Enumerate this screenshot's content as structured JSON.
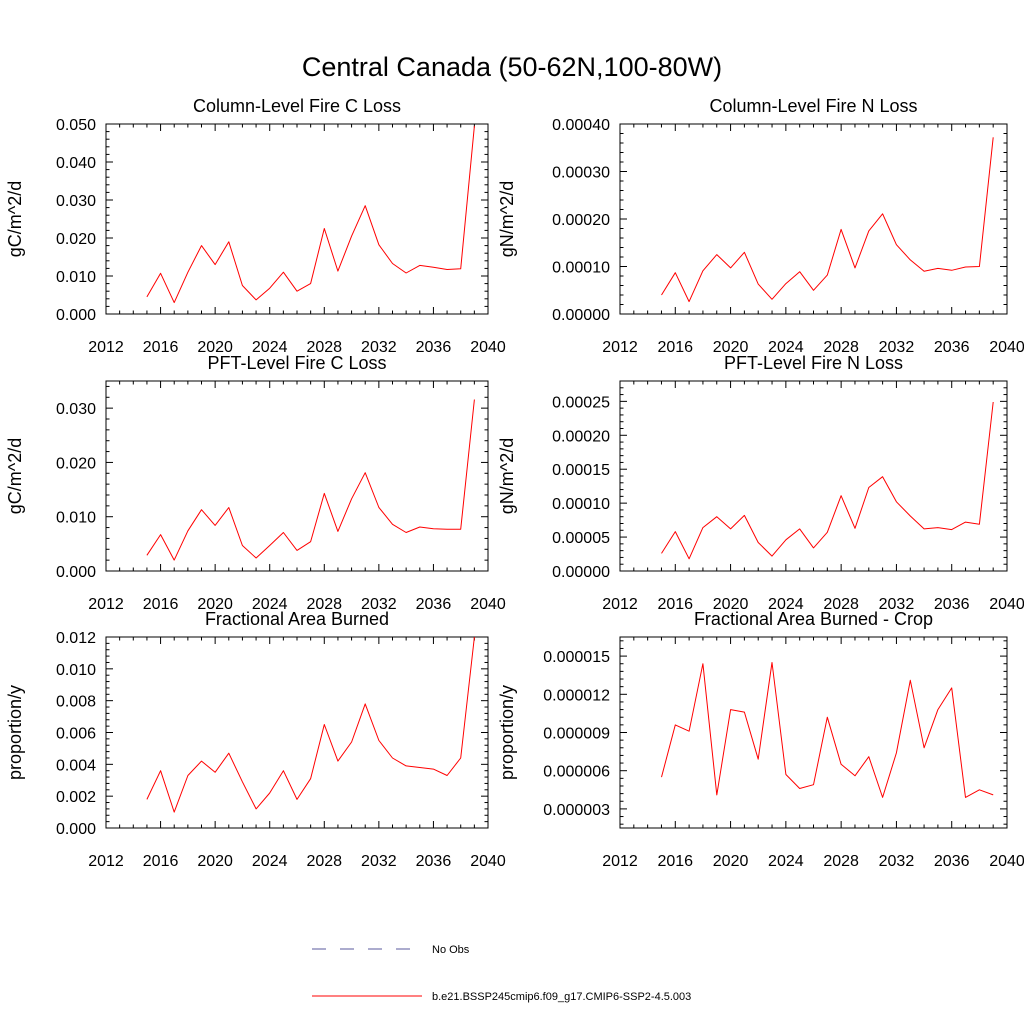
{
  "figure_title": "Central Canada (50-62N,100-80W)",
  "line_color": "#ff0000",
  "obs_color": "#5a5a9c",
  "legend": {
    "obs_label": "No Obs",
    "model_label": "b.e21.BSSP245cmip6.f09_g17.CMIP6-SSP2-4.5.003"
  },
  "chart_data": [
    {
      "type": "line",
      "title": "Column-Level Fire C Loss",
      "ylabel": "gC/m^2/d",
      "xlabel": "",
      "xlim": [
        2012,
        2040
      ],
      "ylim": [
        0,
        0.05
      ],
      "xticks": [
        "2012",
        "2016",
        "2020",
        "2024",
        "2028",
        "2032",
        "2036",
        "2040"
      ],
      "yticks": [
        "0.000",
        "0.010",
        "0.020",
        "0.030",
        "0.040",
        "0.050"
      ],
      "x": [
        2015,
        2016,
        2017,
        2018,
        2019,
        2020,
        2021,
        2022,
        2023,
        2024,
        2025,
        2026,
        2027,
        2028,
        2029,
        2030,
        2031,
        2032,
        2033,
        2034,
        2035,
        2036,
        2037,
        2038,
        2039
      ],
      "series": [
        {
          "name": "b.e21.BSSP245cmip6.f09_g17.CMIP6-SSP2-4.5.003",
          "values": [
            0.0045,
            0.0107,
            0.003,
            0.011,
            0.018,
            0.013,
            0.019,
            0.0075,
            0.0037,
            0.0068,
            0.011,
            0.006,
            0.008,
            0.0225,
            0.0113,
            0.0205,
            0.0285,
            0.0182,
            0.0133,
            0.0108,
            0.0128,
            0.0123,
            0.0117,
            0.0119,
            0.0495
          ]
        }
      ]
    },
    {
      "type": "line",
      "title": "Column-Level Fire N Loss",
      "ylabel": "gN/m^2/d",
      "xlabel": "",
      "xlim": [
        2012,
        2040
      ],
      "ylim": [
        0,
        0.0004
      ],
      "xticks": [
        "2012",
        "2016",
        "2020",
        "2024",
        "2028",
        "2032",
        "2036",
        "2040"
      ],
      "yticks": [
        "0.00000",
        "0.00010",
        "0.00020",
        "0.00030",
        "0.00040"
      ],
      "x": [
        2015,
        2016,
        2017,
        2018,
        2019,
        2020,
        2021,
        2022,
        2023,
        2024,
        2025,
        2026,
        2027,
        2028,
        2029,
        2030,
        2031,
        2032,
        2033,
        2034,
        2035,
        2036,
        2037,
        2038,
        2039
      ],
      "series": [
        {
          "name": "b.e21.BSSP245cmip6.f09_g17.CMIP6-SSP2-4.5.003",
          "values": [
            4e-05,
            8.7e-05,
            2.6e-05,
            9.1e-05,
            0.000125,
            9.7e-05,
            0.00013,
            6.3e-05,
            3.1e-05,
            6.4e-05,
            8.9e-05,
            5e-05,
            8.2e-05,
            0.000178,
            9.7e-05,
            0.000175,
            0.000211,
            0.000146,
            0.000114,
            9e-05,
            9.6e-05,
            9.2e-05,
            9.9e-05,
            0.0001,
            0.000372
          ]
        }
      ]
    },
    {
      "type": "line",
      "title": "PFT-Level Fire C Loss",
      "ylabel": "gC/m^2/d",
      "xlabel": "",
      "xlim": [
        2012,
        2040
      ],
      "ylim": [
        0,
        0.035
      ],
      "xticks": [
        "2012",
        "2016",
        "2020",
        "2024",
        "2028",
        "2032",
        "2036",
        "2040"
      ],
      "yticks": [
        "0.000",
        "0.010",
        "0.020",
        "0.030"
      ],
      "x": [
        2015,
        2016,
        2017,
        2018,
        2019,
        2020,
        2021,
        2022,
        2023,
        2024,
        2025,
        2026,
        2027,
        2028,
        2029,
        2030,
        2031,
        2032,
        2033,
        2034,
        2035,
        2036,
        2037,
        2038,
        2039
      ],
      "series": [
        {
          "name": "b.e21.BSSP245cmip6.f09_g17.CMIP6-SSP2-4.5.003",
          "values": [
            0.0029,
            0.0067,
            0.002,
            0.0074,
            0.0113,
            0.0084,
            0.0117,
            0.0047,
            0.0024,
            0.0047,
            0.0071,
            0.0038,
            0.0054,
            0.0143,
            0.0073,
            0.0133,
            0.0181,
            0.0117,
            0.0086,
            0.0071,
            0.0081,
            0.0078,
            0.0077,
            0.0077,
            0.0316
          ]
        }
      ]
    },
    {
      "type": "line",
      "title": "PFT-Level Fire N Loss",
      "ylabel": "gN/m^2/d",
      "xlabel": "",
      "xlim": [
        2012,
        2040
      ],
      "ylim": [
        0,
        0.00028
      ],
      "xticks": [
        "2012",
        "2016",
        "2020",
        "2024",
        "2028",
        "2032",
        "2036",
        "2040"
      ],
      "yticks": [
        "0.00000",
        "0.00005",
        "0.00010",
        "0.00015",
        "0.00020",
        "0.00025"
      ],
      "x": [
        2015,
        2016,
        2017,
        2018,
        2019,
        2020,
        2021,
        2022,
        2023,
        2024,
        2025,
        2026,
        2027,
        2028,
        2029,
        2030,
        2031,
        2032,
        2033,
        2034,
        2035,
        2036,
        2037,
        2038,
        2039
      ],
      "series": [
        {
          "name": "b.e21.BSSP245cmip6.f09_g17.CMIP6-SSP2-4.5.003",
          "values": [
            2.6e-05,
            5.8e-05,
            1.8e-05,
            6.4e-05,
            8e-05,
            6.2e-05,
            8.2e-05,
            4.2e-05,
            2.2e-05,
            4.6e-05,
            6.2e-05,
            3.4e-05,
            5.7e-05,
            0.000111,
            6.3e-05,
            0.000123,
            0.000139,
            0.000102,
            8.1e-05,
            6.2e-05,
            6.4e-05,
            6.1e-05,
            7.2e-05,
            6.9e-05,
            0.000249
          ]
        }
      ]
    },
    {
      "type": "line",
      "title": "Fractional Area Burned",
      "ylabel": "proportion/y",
      "xlabel": "",
      "xlim": [
        2012,
        2040
      ],
      "ylim": [
        0,
        0.012
      ],
      "xticks": [
        "2012",
        "2016",
        "2020",
        "2024",
        "2028",
        "2032",
        "2036",
        "2040"
      ],
      "yticks": [
        "0.000",
        "0.002",
        "0.004",
        "0.006",
        "0.008",
        "0.010",
        "0.012"
      ],
      "x": [
        2015,
        2016,
        2017,
        2018,
        2019,
        2020,
        2021,
        2022,
        2023,
        2024,
        2025,
        2026,
        2027,
        2028,
        2029,
        2030,
        2031,
        2032,
        2033,
        2034,
        2035,
        2036,
        2037,
        2038,
        2039
      ],
      "series": [
        {
          "name": "b.e21.BSSP245cmip6.f09_g17.CMIP6-SSP2-4.5.003",
          "values": [
            0.0018,
            0.0036,
            0.001,
            0.0033,
            0.0042,
            0.0035,
            0.0047,
            0.0029,
            0.0012,
            0.0022,
            0.0036,
            0.0018,
            0.0031,
            0.0065,
            0.0042,
            0.0054,
            0.0078,
            0.0055,
            0.0044,
            0.0039,
            0.0038,
            0.0037,
            0.0033,
            0.0044,
            0.012
          ]
        }
      ]
    },
    {
      "type": "line",
      "title": "Fractional Area Burned - Crop",
      "ylabel": "proportion/y",
      "xlabel": "",
      "xlim": [
        2012,
        2040
      ],
      "ylim": [
        1.5e-06,
        1.65e-05
      ],
      "xticks": [
        "2012",
        "2016",
        "2020",
        "2024",
        "2028",
        "2032",
        "2036",
        "2040"
      ],
      "yticks": [
        "0.000003",
        "0.000006",
        "0.000009",
        "0.000012",
        "0.000015"
      ],
      "ytick_values": [
        3e-06,
        6e-06,
        9e-06,
        1.2e-05,
        1.5e-05
      ],
      "x": [
        2015,
        2016,
        2017,
        2018,
        2019,
        2020,
        2021,
        2022,
        2023,
        2024,
        2025,
        2026,
        2027,
        2028,
        2029,
        2030,
        2031,
        2032,
        2033,
        2034,
        2035,
        2036,
        2037,
        2038,
        2039
      ],
      "series": [
        {
          "name": "b.e21.BSSP245cmip6.f09_g17.CMIP6-SSP2-4.5.003",
          "values": [
            5.5e-06,
            9.6e-06,
            9.1e-06,
            1.44e-05,
            4.1e-06,
            1.08e-05,
            1.06e-05,
            6.9e-06,
            1.45e-05,
            5.7e-06,
            4.6e-06,
            4.9e-06,
            1.02e-05,
            6.5e-06,
            5.6e-06,
            7.1e-06,
            3.9e-06,
            7.4e-06,
            1.31e-05,
            7.8e-06,
            1.08e-05,
            1.25e-05,
            3.9e-06,
            4.5e-06,
            4.1e-06
          ]
        }
      ]
    }
  ]
}
